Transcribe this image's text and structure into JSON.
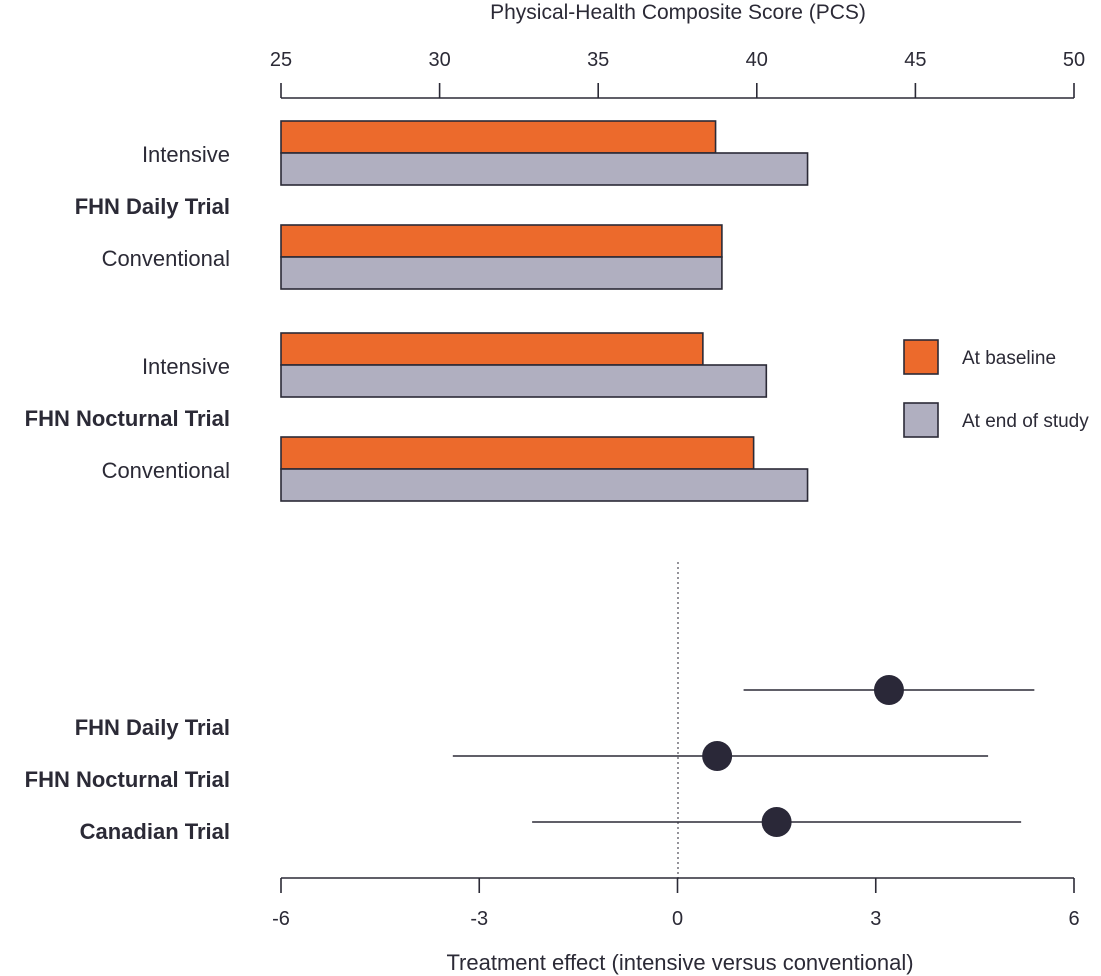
{
  "chart_data": [
    {
      "type": "bar",
      "orientation": "horizontal",
      "title": "",
      "xlabel": "Physical-Health Composite Score (PCS)",
      "ylabel": "",
      "x_axis_position": "top",
      "xlim": [
        25,
        50
      ],
      "xticks": [
        "25",
        "30",
        "35",
        "40",
        "45",
        "50"
      ],
      "groups": [
        {
          "name": "FHN Daily Trial",
          "rows": [
            {
              "label": "Intensive",
              "values": [
                38.7,
                41.6
              ]
            },
            {
              "label": "Conventional",
              "values": [
                38.9,
                38.9
              ]
            }
          ]
        },
        {
          "name": "FHN Nocturnal Trial",
          "rows": [
            {
              "label": "Intensive",
              "values": [
                38.3,
                40.3
              ]
            },
            {
              "label": "Conventional",
              "values": [
                39.9,
                41.6
              ]
            }
          ]
        }
      ],
      "series": [
        {
          "name": "At baseline",
          "color": "#ec6a2c"
        },
        {
          "name": "At end of study",
          "color": "#b0afc0"
        }
      ],
      "legend": "right",
      "grid": false
    },
    {
      "type": "scatter",
      "subtype": "forest",
      "title": "",
      "xlabel": "Treatment effect (intensive versus conventional)",
      "ylabel": "",
      "xlim": [
        -6,
        6
      ],
      "xticks": [
        "-6",
        "-3",
        "0",
        "3",
        "6"
      ],
      "reference_line": 0,
      "labels": [
        "FHN Daily Trial",
        "FHN Nocturnal Trial",
        "Canadian Trial"
      ],
      "points": [
        {
          "estimate": 3.2,
          "ci": [
            1.0,
            5.4
          ]
        },
        {
          "estimate": 0.6,
          "ci": [
            -3.4,
            4.7
          ]
        },
        {
          "estimate": 1.5,
          "ci": [
            -2.2,
            5.2
          ]
        }
      ],
      "point_color": "#2a2838",
      "grid": false
    }
  ]
}
